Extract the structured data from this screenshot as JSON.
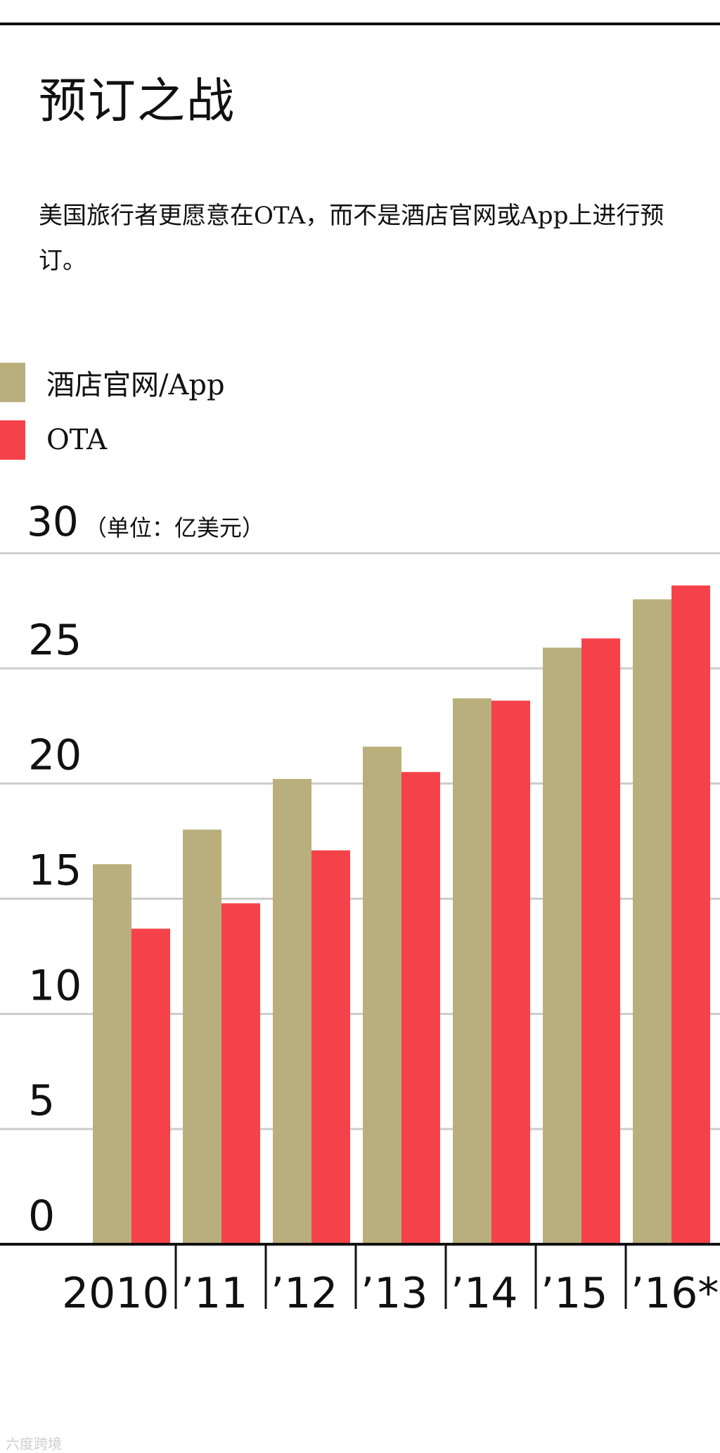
{
  "title": "预订之战",
  "subtitle": "美国旅行者更愿意在OTA，而不是酒店官网或App上进行预订。",
  "unit_top_value": "30",
  "unit_label": "（单位：亿美元）",
  "watermark": "六度跨境",
  "colors": {
    "hotel": "#b8af7c",
    "ota": "#f5424a",
    "grid": "#cccccc",
    "axis": "#111111"
  },
  "chart_data": {
    "type": "bar",
    "categories": [
      "2010",
      "’11",
      "’12",
      "’13",
      "’14",
      "’15",
      "’16*"
    ],
    "series": [
      {
        "name": "酒店官网/App",
        "values": [
          16.5,
          18.0,
          20.2,
          21.6,
          23.7,
          25.9,
          28.0
        ]
      },
      {
        "name": "OTA",
        "values": [
          13.7,
          14.8,
          17.1,
          20.5,
          23.6,
          26.3,
          28.6
        ]
      }
    ],
    "yticks": [
      0,
      5,
      10,
      15,
      20,
      25,
      30
    ],
    "ylim": [
      0,
      30
    ],
    "ylabel": "（单位：亿美元）",
    "grid": true,
    "legend_position": "top-left"
  }
}
